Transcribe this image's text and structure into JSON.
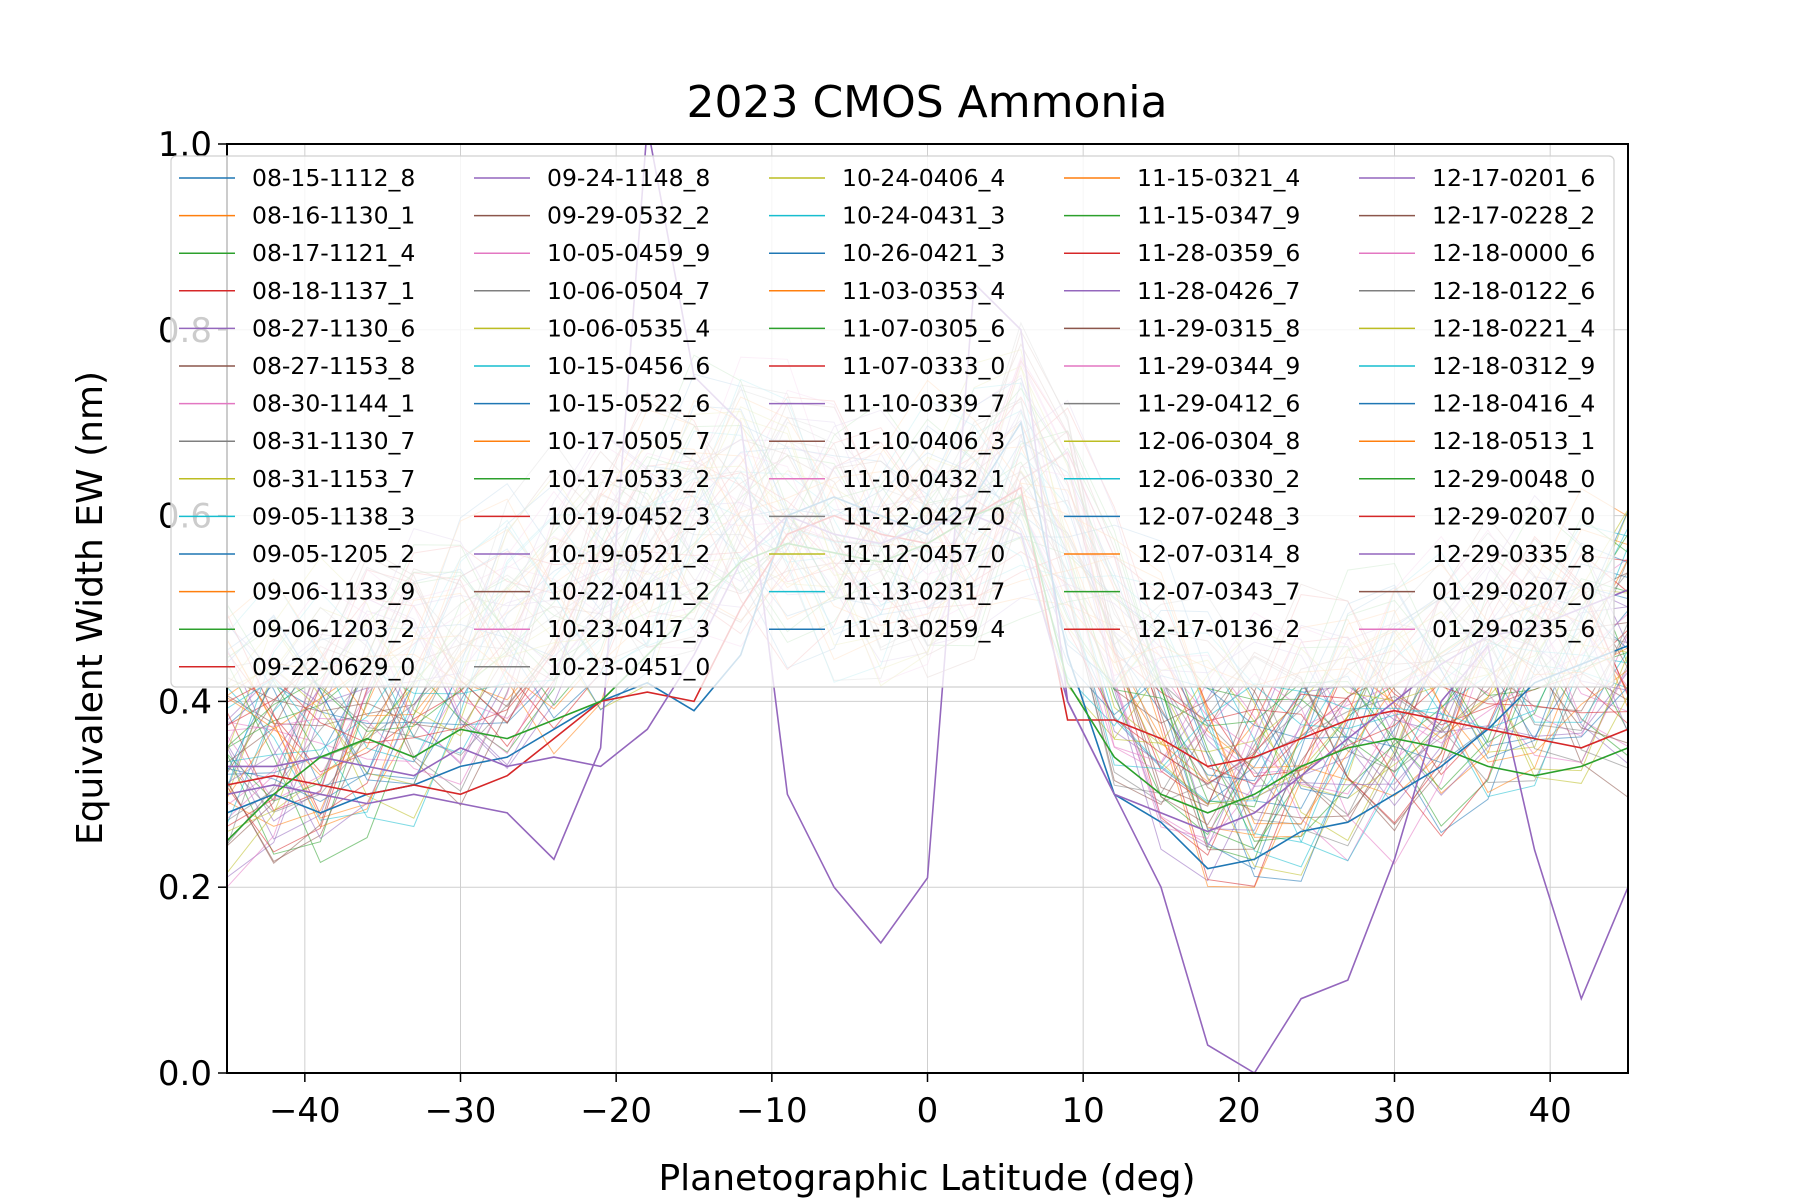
{
  "chart_data": {
    "type": "line",
    "title": "2023 CMOS Ammonia",
    "xlabel": "Planetographic Latitude (deg)",
    "ylabel": "Equivalent Width EW (nm)",
    "xlim": [
      -45,
      45
    ],
    "ylim": [
      0.0,
      1.0
    ],
    "xticks": [
      -40,
      -30,
      -20,
      -10,
      0,
      10,
      20,
      30,
      40
    ],
    "xtick_labels": [
      "−40",
      "−30",
      "−20",
      "−10",
      "0",
      "10",
      "20",
      "30",
      "40"
    ],
    "yticks": [
      0.0,
      0.2,
      0.4,
      0.6,
      0.8,
      1.0
    ],
    "ytick_labels": [
      "0.0",
      "0.2",
      "0.4",
      "0.6",
      "0.8",
      "1.0"
    ],
    "grid": true,
    "legend_position": "upper, 5 columns",
    "palette": [
      "#1f77b4",
      "#ff7f0e",
      "#2ca02c",
      "#d62728",
      "#9467bd",
      "#8c564b",
      "#e377c2",
      "#7f7f7f",
      "#bcbd22",
      "#17becf"
    ],
    "x": [
      -45,
      -42,
      -39,
      -36,
      -33,
      -30,
      -27,
      -24,
      -21,
      -18,
      -15,
      -12,
      -9,
      -6,
      -3,
      0,
      3,
      6,
      9,
      12,
      15,
      18,
      21,
      24,
      27,
      30,
      33,
      36,
      39,
      42,
      45
    ],
    "baseline_profile": [
      0.36,
      0.37,
      0.38,
      0.41,
      0.43,
      0.45,
      0.48,
      0.51,
      0.54,
      0.57,
      0.6,
      0.62,
      0.61,
      0.58,
      0.56,
      0.57,
      0.6,
      0.66,
      0.58,
      0.46,
      0.4,
      0.35,
      0.34,
      0.36,
      0.38,
      0.4,
      0.42,
      0.44,
      0.45,
      0.46,
      0.47
    ],
    "highlighted_series": [
      {
        "name": "12-29-0335_8",
        "values": [
          0.3,
          0.31,
          0.3,
          0.29,
          0.3,
          0.29,
          0.28,
          0.23,
          0.35,
          1.02,
          0.75,
          0.7,
          0.3,
          0.2,
          0.14,
          0.21,
          0.85,
          0.8,
          0.4,
          0.3,
          0.2,
          0.03,
          0.0,
          0.08,
          0.1,
          0.23,
          0.4,
          0.46,
          0.24,
          0.08,
          0.2
        ]
      },
      {
        "name": "10-15-0522_6",
        "values": [
          0.28,
          0.3,
          0.28,
          0.3,
          0.31,
          0.33,
          0.34,
          0.37,
          0.4,
          0.42,
          0.39,
          0.45,
          0.6,
          0.62,
          0.6,
          0.58,
          0.62,
          0.7,
          0.45,
          0.3,
          0.27,
          0.22,
          0.23,
          0.26,
          0.27,
          0.3,
          0.33,
          0.37,
          0.42,
          0.44,
          0.46
        ]
      },
      {
        "name": "10-19-0452_3",
        "values": [
          0.31,
          0.32,
          0.31,
          0.3,
          0.31,
          0.3,
          0.32,
          0.36,
          0.4,
          0.41,
          0.4,
          0.5,
          0.58,
          0.6,
          0.58,
          0.57,
          0.6,
          0.63,
          0.38,
          0.38,
          0.36,
          0.33,
          0.34,
          0.36,
          0.38,
          0.39,
          0.38,
          0.37,
          0.36,
          0.35,
          0.37
        ]
      },
      {
        "name": "11-10-0339_7",
        "values": [
          0.33,
          0.33,
          0.34,
          0.33,
          0.32,
          0.35,
          0.33,
          0.34,
          0.33,
          0.37,
          0.45,
          0.55,
          0.6,
          0.58,
          0.57,
          0.59,
          0.6,
          0.58,
          0.4,
          0.3,
          0.28,
          0.26,
          0.28,
          0.32,
          0.36,
          0.4,
          0.44,
          0.47,
          0.48,
          0.5,
          0.52
        ]
      },
      {
        "name": "12-07-0343_7",
        "values": [
          0.25,
          0.3,
          0.34,
          0.36,
          0.34,
          0.37,
          0.36,
          0.38,
          0.4,
          0.45,
          0.5,
          0.55,
          0.57,
          0.56,
          0.55,
          0.57,
          0.6,
          0.62,
          0.42,
          0.34,
          0.3,
          0.28,
          0.3,
          0.33,
          0.35,
          0.36,
          0.35,
          0.33,
          0.32,
          0.33,
          0.35
        ]
      }
    ],
    "legend": [
      "08-15-1112_8",
      "08-16-1130_1",
      "08-17-1121_4",
      "08-18-1137_1",
      "08-27-1130_6",
      "08-27-1153_8",
      "08-30-1144_1",
      "08-31-1130_7",
      "08-31-1153_7",
      "09-05-1138_3",
      "09-05-1205_2",
      "09-06-1133_9",
      "09-06-1203_2",
      "09-22-0629_0",
      "09-24-1148_8",
      "09-29-0532_2",
      "10-05-0459_9",
      "10-06-0504_7",
      "10-06-0535_4",
      "10-15-0456_6",
      "10-15-0522_6",
      "10-17-0505_7",
      "10-17-0533_2",
      "10-19-0452_3",
      "10-19-0521_2",
      "10-22-0411_2",
      "10-23-0417_3",
      "10-23-0451_0",
      "10-24-0406_4",
      "10-24-0431_3",
      "10-26-0421_3",
      "11-03-0353_4",
      "11-07-0305_6",
      "11-07-0333_0",
      "11-10-0339_7",
      "11-10-0406_3",
      "11-10-0432_1",
      "11-12-0427_0",
      "11-12-0457_0",
      "11-13-0231_7",
      "11-13-0259_4",
      "11-15-0321_4",
      "11-15-0347_9",
      "11-28-0359_6",
      "11-28-0426_7",
      "11-29-0315_8",
      "11-29-0344_9",
      "11-29-0412_6",
      "12-06-0304_8",
      "12-06-0330_2",
      "12-07-0248_3",
      "12-07-0314_8",
      "12-07-0343_7",
      "12-17-0136_2",
      "12-17-0201_6",
      "12-17-0228_2",
      "12-18-0000_6",
      "12-18-0122_6",
      "12-18-0221_4",
      "12-18-0312_9",
      "12-18-0416_4",
      "12-18-0513_1",
      "12-29-0048_0",
      "12-29-0207_0",
      "12-29-0335_8",
      "01-29-0207_0",
      "01-29-0235_6"
    ],
    "legend_column_sizes": [
      14,
      14,
      13,
      13,
      13
    ]
  }
}
